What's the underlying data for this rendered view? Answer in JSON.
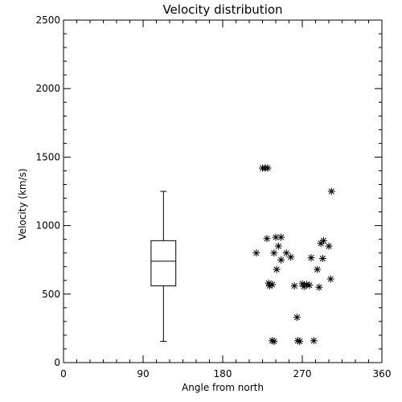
{
  "chart_data": {
    "type": "scatter",
    "title": "Velocity distribution",
    "xlabel": "Angle from north",
    "ylabel": "Velocity (km/s)",
    "xlim": [
      0,
      360
    ],
    "ylim": [
      0,
      2500
    ],
    "x_ticks": [
      0,
      90,
      180,
      270,
      360
    ],
    "x_tick_labels": [
      "0",
      "90",
      "180",
      "270",
      "360"
    ],
    "x_minor_step": 15,
    "y_ticks": [
      0,
      500,
      1000,
      1500,
      2000,
      2500
    ],
    "y_tick_labels": [
      "0",
      "500",
      "1000",
      "1500",
      "2000",
      "2500"
    ],
    "y_minor_step": 100,
    "grid": false,
    "marker": "asterisk",
    "boxplot": {
      "x": 113,
      "width_x": 28,
      "whisker_low": 155,
      "q1": 560,
      "median": 740,
      "q3": 890,
      "whisker_high": 1250
    },
    "points": [
      [
        225,
        1420
      ],
      [
        228,
        1420
      ],
      [
        231,
        1420
      ],
      [
        303,
        1250
      ],
      [
        230,
        905
      ],
      [
        240,
        915
      ],
      [
        246,
        915
      ],
      [
        294,
        890
      ],
      [
        291,
        870
      ],
      [
        300,
        850
      ],
      [
        243,
        850
      ],
      [
        218,
        800
      ],
      [
        238,
        800
      ],
      [
        252,
        800
      ],
      [
        257,
        770
      ],
      [
        246,
        750
      ],
      [
        280,
        765
      ],
      [
        293,
        760
      ],
      [
        287,
        680
      ],
      [
        241,
        680
      ],
      [
        232,
        580
      ],
      [
        236,
        570
      ],
      [
        233,
        560
      ],
      [
        270,
        575
      ],
      [
        275,
        570
      ],
      [
        278,
        565
      ],
      [
        261,
        560
      ],
      [
        272,
        555
      ],
      [
        302,
        610
      ],
      [
        289,
        550
      ],
      [
        264,
        330
      ],
      [
        236,
        160
      ],
      [
        238,
        155
      ],
      [
        265,
        160
      ],
      [
        267,
        155
      ],
      [
        283,
        160
      ]
    ]
  }
}
